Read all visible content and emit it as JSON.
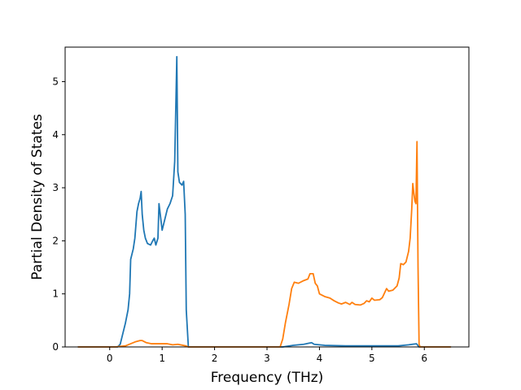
{
  "chart_data": {
    "type": "line",
    "title": "",
    "xlabel": "Frequency (THz)",
    "ylabel": "Partial Density of States",
    "xlim": [
      -0.85,
      6.85
    ],
    "ylim": [
      0,
      5.65
    ],
    "xticks": [
      0,
      1,
      2,
      3,
      4,
      5,
      6
    ],
    "yticks": [
      0,
      1,
      2,
      3,
      4,
      5
    ],
    "grid": false,
    "series": [
      {
        "color": "#1f77b4",
        "points": [
          [
            -0.6,
            0
          ],
          [
            0.15,
            0
          ],
          [
            0.2,
            0.05
          ],
          [
            0.25,
            0.25
          ],
          [
            0.3,
            0.45
          ],
          [
            0.35,
            0.7
          ],
          [
            0.38,
            1.0
          ],
          [
            0.4,
            1.65
          ],
          [
            0.45,
            1.85
          ],
          [
            0.48,
            2.05
          ],
          [
            0.5,
            2.3
          ],
          [
            0.52,
            2.55
          ],
          [
            0.55,
            2.7
          ],
          [
            0.58,
            2.8
          ],
          [
            0.6,
            2.93
          ],
          [
            0.62,
            2.5
          ],
          [
            0.65,
            2.2
          ],
          [
            0.68,
            2.05
          ],
          [
            0.72,
            1.95
          ],
          [
            0.78,
            1.92
          ],
          [
            0.82,
            2.0
          ],
          [
            0.85,
            2.05
          ],
          [
            0.88,
            1.92
          ],
          [
            0.92,
            2.05
          ],
          [
            0.94,
            2.7
          ],
          [
            0.97,
            2.45
          ],
          [
            1.0,
            2.2
          ],
          [
            1.05,
            2.4
          ],
          [
            1.1,
            2.6
          ],
          [
            1.15,
            2.7
          ],
          [
            1.2,
            2.85
          ],
          [
            1.24,
            3.5
          ],
          [
            1.28,
            5.47
          ],
          [
            1.3,
            3.3
          ],
          [
            1.33,
            3.1
          ],
          [
            1.38,
            3.05
          ],
          [
            1.41,
            3.12
          ],
          [
            1.44,
            2.5
          ],
          [
            1.46,
            0.7
          ],
          [
            1.5,
            0
          ],
          [
            3.3,
            0
          ],
          [
            3.5,
            0.03
          ],
          [
            3.7,
            0.05
          ],
          [
            3.8,
            0.07
          ],
          [
            3.85,
            0.08
          ],
          [
            3.9,
            0.05
          ],
          [
            4.1,
            0.03
          ],
          [
            4.5,
            0.02
          ],
          [
            5.0,
            0.02
          ],
          [
            5.5,
            0.02
          ],
          [
            5.7,
            0.04
          ],
          [
            5.85,
            0.06
          ],
          [
            5.9,
            0
          ],
          [
            6.5,
            0
          ]
        ]
      },
      {
        "color": "#ff7f0e",
        "points": [
          [
            -0.6,
            0
          ],
          [
            0.1,
            0
          ],
          [
            0.3,
            0.02
          ],
          [
            0.4,
            0.06
          ],
          [
            0.5,
            0.1
          ],
          [
            0.58,
            0.12
          ],
          [
            0.62,
            0.12
          ],
          [
            0.7,
            0.08
          ],
          [
            0.8,
            0.06
          ],
          [
            1.0,
            0.06
          ],
          [
            1.1,
            0.06
          ],
          [
            1.2,
            0.04
          ],
          [
            1.3,
            0.05
          ],
          [
            1.45,
            0.02
          ],
          [
            1.5,
            0
          ],
          [
            3.25,
            0
          ],
          [
            3.3,
            0.15
          ],
          [
            3.35,
            0.45
          ],
          [
            3.42,
            0.8
          ],
          [
            3.47,
            1.1
          ],
          [
            3.52,
            1.22
          ],
          [
            3.6,
            1.2
          ],
          [
            3.7,
            1.25
          ],
          [
            3.78,
            1.28
          ],
          [
            3.82,
            1.38
          ],
          [
            3.88,
            1.38
          ],
          [
            3.92,
            1.2
          ],
          [
            3.96,
            1.15
          ],
          [
            4.0,
            1.0
          ],
          [
            4.1,
            0.95
          ],
          [
            4.2,
            0.92
          ],
          [
            4.28,
            0.87
          ],
          [
            4.36,
            0.83
          ],
          [
            4.42,
            0.81
          ],
          [
            4.5,
            0.84
          ],
          [
            4.58,
            0.8
          ],
          [
            4.62,
            0.84
          ],
          [
            4.68,
            0.8
          ],
          [
            4.78,
            0.79
          ],
          [
            4.85,
            0.82
          ],
          [
            4.9,
            0.87
          ],
          [
            4.95,
            0.85
          ],
          [
            5.0,
            0.92
          ],
          [
            5.05,
            0.88
          ],
          [
            5.15,
            0.89
          ],
          [
            5.2,
            0.93
          ],
          [
            5.28,
            1.1
          ],
          [
            5.32,
            1.05
          ],
          [
            5.4,
            1.07
          ],
          [
            5.48,
            1.15
          ],
          [
            5.52,
            1.3
          ],
          [
            5.55,
            1.57
          ],
          [
            5.6,
            1.55
          ],
          [
            5.65,
            1.6
          ],
          [
            5.7,
            1.8
          ],
          [
            5.73,
            2.05
          ],
          [
            5.76,
            2.6
          ],
          [
            5.78,
            3.08
          ],
          [
            5.8,
            2.9
          ],
          [
            5.82,
            2.75
          ],
          [
            5.84,
            2.7
          ],
          [
            5.86,
            3.87
          ],
          [
            5.88,
            1.5
          ],
          [
            5.9,
            0.05
          ],
          [
            5.92,
            0
          ],
          [
            6.5,
            0
          ]
        ]
      }
    ]
  }
}
